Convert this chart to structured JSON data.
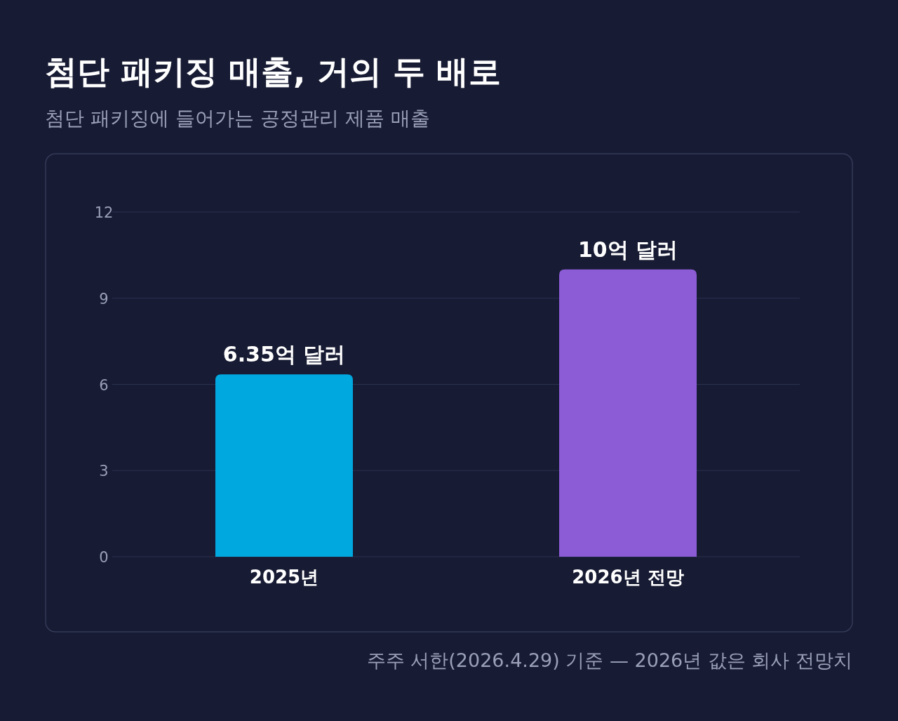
{
  "chart_data": {
    "type": "bar",
    "title": "첨단 패키징 매출, 거의 두 배로",
    "subtitle": "첨단 패키징에 들어가는 공정관리 제품 매출",
    "categories": [
      "2025년",
      "2026년 전망"
    ],
    "values": [
      6.35,
      10
    ],
    "colors": [
      "#00a8e0",
      "#8b5cd6"
    ],
    "value_labels": [
      "6.35억 달러",
      "10억 달러"
    ],
    "ylim": [
      0,
      12
    ],
    "yticks": [
      0,
      3,
      6,
      9,
      12
    ],
    "grid": "y",
    "annotations": [
      "주주 서한(2026.4.29) 기준 — 2026년 값은 회사 전망치"
    ]
  }
}
